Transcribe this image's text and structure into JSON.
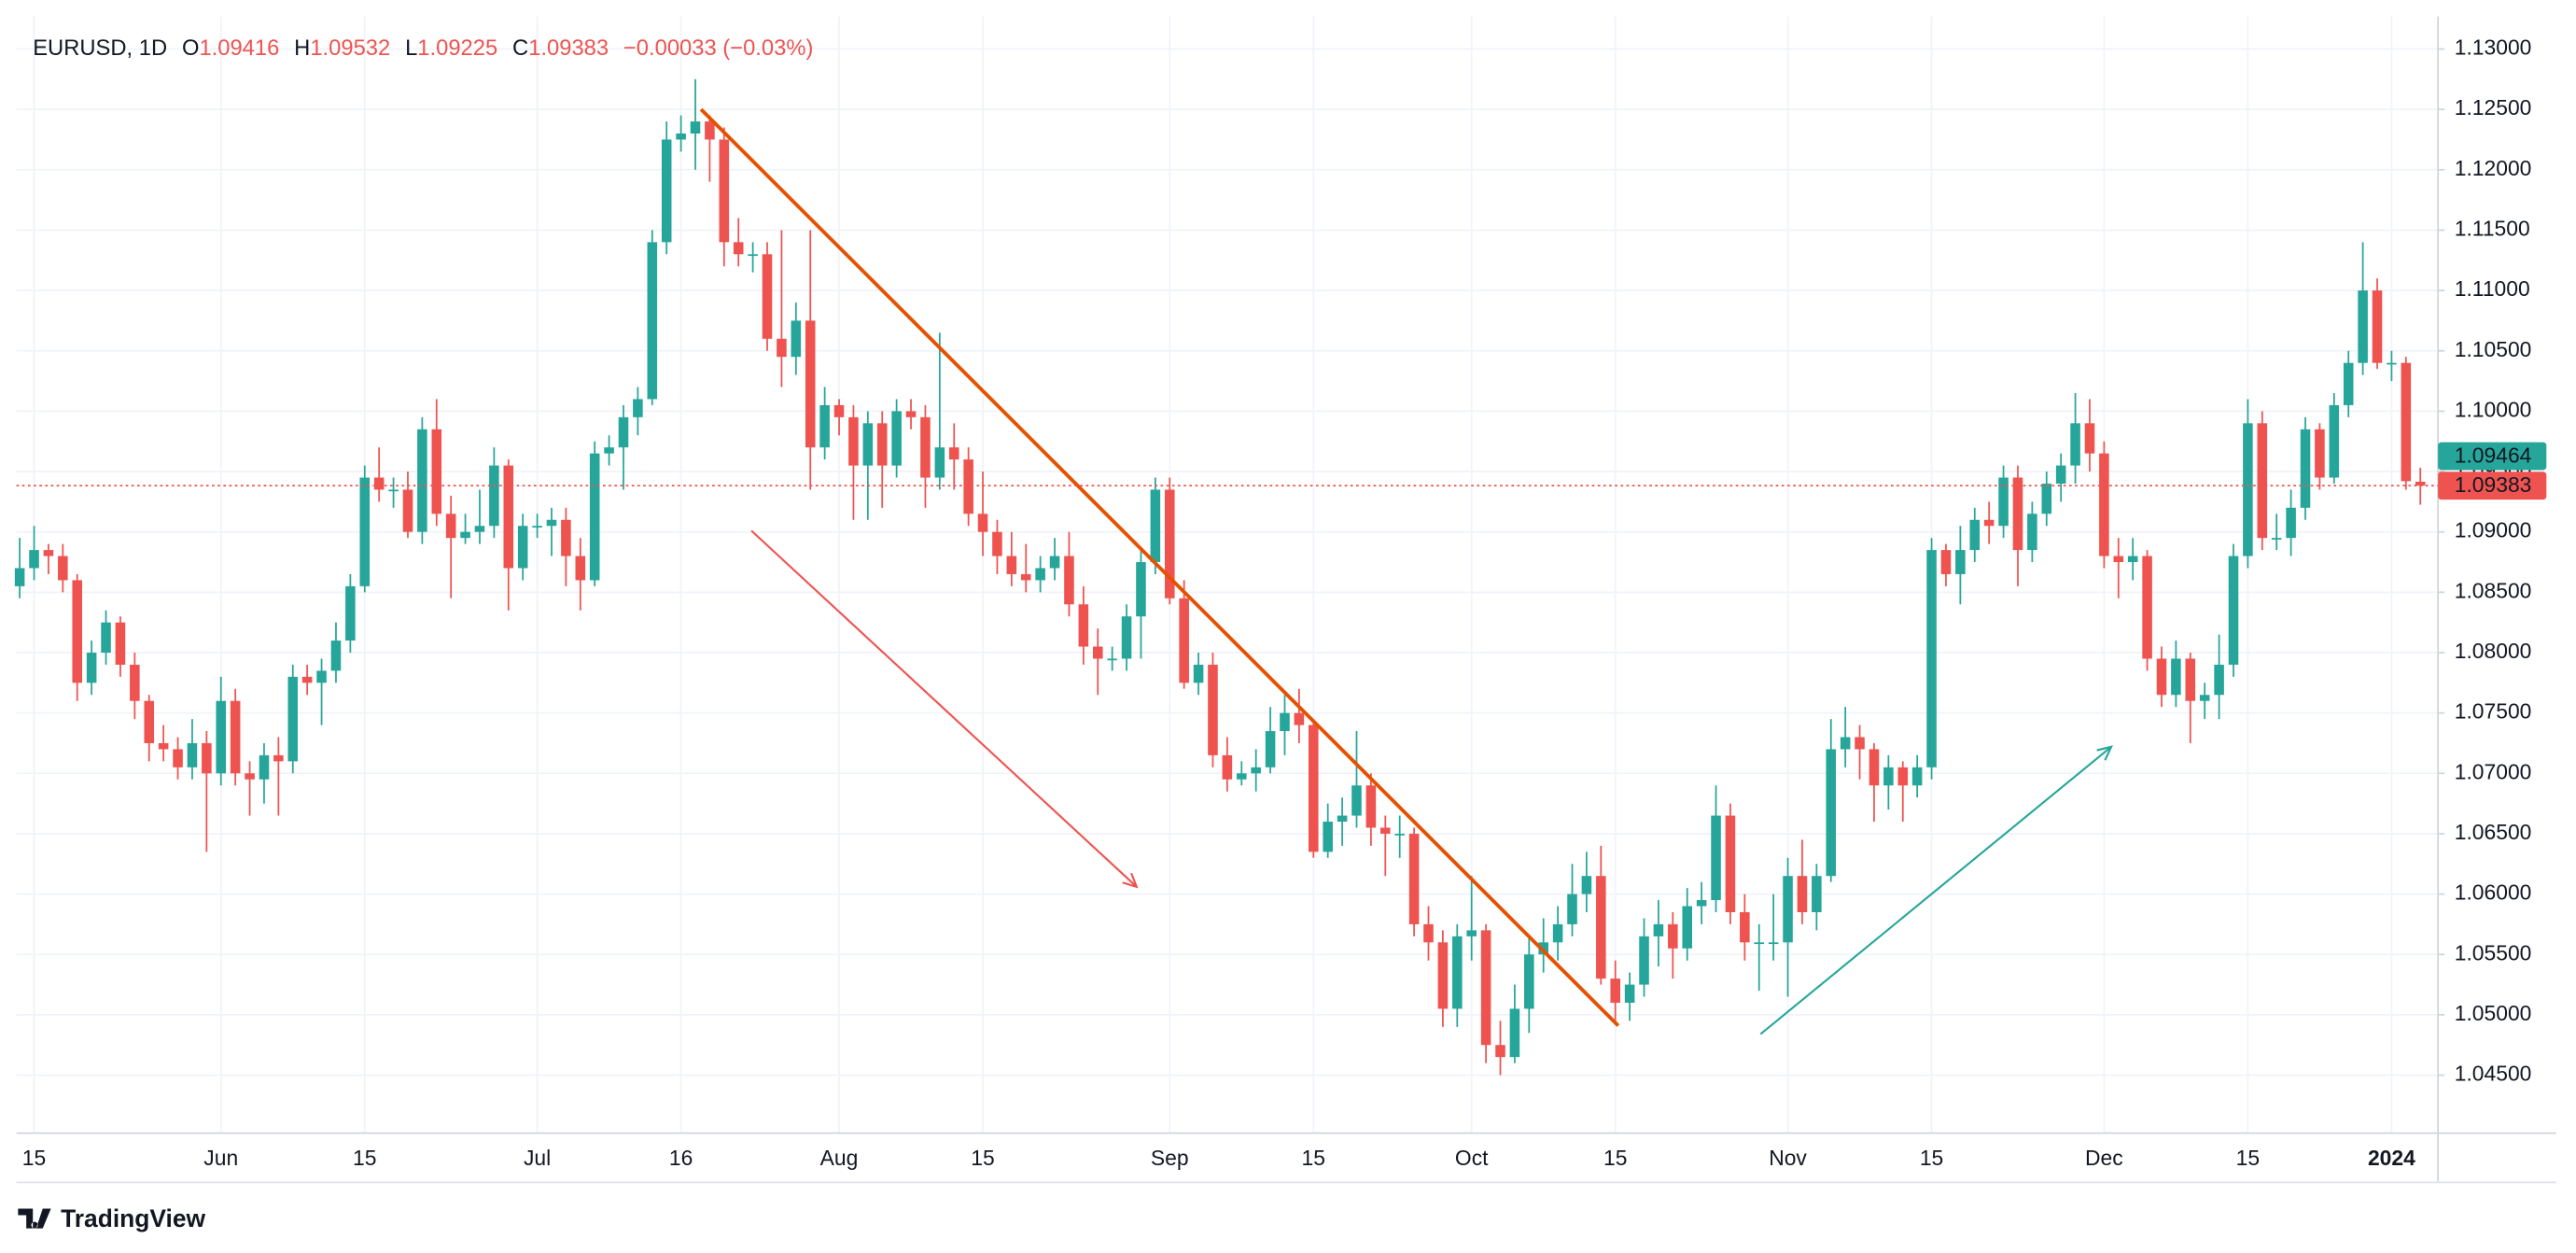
{
  "header": {
    "symbol": "EURUSD, 1D",
    "o_label": "O",
    "o": "1.09416",
    "h_label": "H",
    "h": "1.09532",
    "l_label": "L",
    "l": "1.09225",
    "c_label": "C",
    "c": "1.09383",
    "change": "−0.00033 (−0.03%)"
  },
  "footer": {
    "brand": "TradingView"
  },
  "chart_data": {
    "type": "candlestick",
    "up_color": "#26a69a",
    "down_color": "#ef5350",
    "grid": true,
    "ylim": [
      1.0402,
      1.1327
    ],
    "yticks": [
      {
        "value": 1.045,
        "label": "1.04500"
      },
      {
        "value": 1.05,
        "label": "1.05000"
      },
      {
        "value": 1.055,
        "label": "1.05500"
      },
      {
        "value": 1.06,
        "label": "1.06000"
      },
      {
        "value": 1.065,
        "label": "1.06500"
      },
      {
        "value": 1.07,
        "label": "1.07000"
      },
      {
        "value": 1.075,
        "label": "1.07500"
      },
      {
        "value": 1.08,
        "label": "1.08000"
      },
      {
        "value": 1.085,
        "label": "1.08500"
      },
      {
        "value": 1.09,
        "label": "1.09000"
      },
      {
        "value": 1.095,
        "label": "1.09500"
      },
      {
        "value": 1.1,
        "label": "1.10000"
      },
      {
        "value": 1.105,
        "label": "1.10500"
      },
      {
        "value": 1.11,
        "label": "1.11000"
      },
      {
        "value": 1.115,
        "label": "1.11500"
      },
      {
        "value": 1.12,
        "label": "1.12000"
      },
      {
        "value": 1.125,
        "label": "1.12500"
      },
      {
        "value": 1.13,
        "label": "1.13000"
      }
    ],
    "categories": [
      null,
      "15",
      null,
      null,
      null,
      null,
      null,
      null,
      null,
      null,
      null,
      null,
      null,
      null,
      "Jun",
      null,
      null,
      null,
      null,
      null,
      null,
      null,
      null,
      null,
      "15",
      null,
      null,
      null,
      null,
      null,
      null,
      null,
      null,
      null,
      null,
      null,
      "Jul",
      null,
      null,
      null,
      null,
      null,
      null,
      null,
      null,
      null,
      "16",
      null,
      null,
      null,
      null,
      null,
      null,
      null,
      null,
      null,
      null,
      "Aug",
      null,
      null,
      null,
      null,
      null,
      null,
      null,
      null,
      null,
      "15",
      null,
      null,
      null,
      null,
      null,
      null,
      null,
      null,
      null,
      null,
      null,
      null,
      "Sep",
      null,
      null,
      null,
      null,
      null,
      null,
      null,
      null,
      null,
      "15",
      null,
      null,
      null,
      null,
      null,
      null,
      null,
      null,
      null,
      null,
      "Oct",
      null,
      null,
      null,
      null,
      null,
      null,
      null,
      null,
      null,
      "15",
      null,
      null,
      null,
      null,
      null,
      null,
      null,
      null,
      null,
      null,
      null,
      "Nov",
      null,
      null,
      null,
      null,
      null,
      null,
      null,
      null,
      null,
      "15",
      null,
      null,
      null,
      null,
      null,
      null,
      null,
      null,
      null,
      null,
      null,
      "Dec",
      null,
      null,
      null,
      null,
      null,
      null,
      null,
      null,
      null,
      "15",
      null,
      null,
      null,
      null,
      null,
      null,
      null,
      null,
      null,
      "2024",
      null,
      null
    ],
    "ohlc": [
      [
        1.0855,
        1.0895,
        1.0845,
        1.087
      ],
      [
        1.087,
        1.0905,
        1.086,
        1.0885
      ],
      [
        1.0885,
        1.089,
        1.0865,
        1.088
      ],
      [
        1.088,
        1.089,
        1.085,
        1.086
      ],
      [
        1.086,
        1.0865,
        1.076,
        1.0775
      ],
      [
        1.0775,
        1.081,
        1.0765,
        1.08
      ],
      [
        1.08,
        1.0835,
        1.079,
        1.0825
      ],
      [
        1.0825,
        1.083,
        1.078,
        1.079
      ],
      [
        1.079,
        1.08,
        1.0745,
        1.076
      ],
      [
        1.076,
        1.0765,
        1.071,
        1.0725
      ],
      [
        1.0725,
        1.074,
        1.071,
        1.072
      ],
      [
        1.072,
        1.073,
        1.0695,
        1.0705
      ],
      [
        1.0705,
        1.0745,
        1.0695,
        1.0725
      ],
      [
        1.0725,
        1.0735,
        1.0635,
        1.07
      ],
      [
        1.07,
        1.078,
        1.069,
        1.076
      ],
      [
        1.076,
        1.077,
        1.069,
        1.07
      ],
      [
        1.07,
        1.071,
        1.0665,
        1.0695
      ],
      [
        1.0695,
        1.0725,
        1.0675,
        1.0715
      ],
      [
        1.0715,
        1.073,
        1.0665,
        1.071
      ],
      [
        1.071,
        1.079,
        1.07,
        1.078
      ],
      [
        1.078,
        1.079,
        1.0765,
        1.0775
      ],
      [
        1.0775,
        1.0795,
        1.074,
        1.0785
      ],
      [
        1.0785,
        1.0825,
        1.0775,
        1.081
      ],
      [
        1.081,
        1.0865,
        1.08,
        1.0855
      ],
      [
        1.0855,
        1.0955,
        1.085,
        1.0945
      ],
      [
        1.0945,
        1.097,
        1.0925,
        1.0935
      ],
      [
        1.0935,
        1.0945,
        1.092,
        1.0935
      ],
      [
        1.0935,
        1.095,
        1.0895,
        1.09
      ],
      [
        1.09,
        1.0995,
        1.089,
        1.0985
      ],
      [
        1.0985,
        1.101,
        1.0905,
        1.0915
      ],
      [
        1.0915,
        1.093,
        1.0845,
        1.0895
      ],
      [
        1.0895,
        1.0915,
        1.089,
        1.09
      ],
      [
        1.09,
        1.0935,
        1.089,
        1.0905
      ],
      [
        1.0905,
        1.097,
        1.0895,
        1.0955
      ],
      [
        1.0955,
        1.096,
        1.0835,
        1.087
      ],
      [
        1.087,
        1.0915,
        1.086,
        1.0905
      ],
      [
        1.0905,
        1.0915,
        1.0895,
        1.0905
      ],
      [
        1.0905,
        1.092,
        1.088,
        1.091
      ],
      [
        1.091,
        1.092,
        1.0855,
        1.088
      ],
      [
        1.088,
        1.0895,
        1.0835,
        1.086
      ],
      [
        1.086,
        1.0975,
        1.0855,
        1.0965
      ],
      [
        1.0965,
        1.098,
        1.0955,
        1.097
      ],
      [
        1.097,
        1.1005,
        1.0935,
        1.0995
      ],
      [
        1.0995,
        1.102,
        1.098,
        1.101
      ],
      [
        1.101,
        1.115,
        1.1005,
        1.114
      ],
      [
        1.114,
        1.124,
        1.113,
        1.1225
      ],
      [
        1.1225,
        1.1245,
        1.1215,
        1.123
      ],
      [
        1.123,
        1.1275,
        1.12,
        1.124
      ],
      [
        1.124,
        1.1245,
        1.119,
        1.1225
      ],
      [
        1.1225,
        1.1235,
        1.112,
        1.114
      ],
      [
        1.114,
        1.116,
        1.112,
        1.113
      ],
      [
        1.113,
        1.114,
        1.1115,
        1.113
      ],
      [
        1.113,
        1.114,
        1.105,
        1.106
      ],
      [
        1.106,
        1.115,
        1.102,
        1.1045
      ],
      [
        1.1045,
        1.109,
        1.103,
        1.1075
      ],
      [
        1.1075,
        1.115,
        1.0935,
        1.097
      ],
      [
        1.097,
        1.102,
        1.096,
        1.1005
      ],
      [
        1.1005,
        1.101,
        1.098,
        1.0995
      ],
      [
        1.0995,
        1.1005,
        1.091,
        1.0955
      ],
      [
        1.0955,
        1.1,
        1.091,
        1.099
      ],
      [
        1.099,
        1.1,
        1.092,
        1.0955
      ],
      [
        1.0955,
        1.101,
        1.0945,
        1.1
      ],
      [
        1.1,
        1.101,
        1.0985,
        1.0995
      ],
      [
        1.0995,
        1.1005,
        1.092,
        1.0945
      ],
      [
        1.0945,
        1.1065,
        1.0935,
        1.097
      ],
      [
        1.097,
        1.099,
        1.0935,
        1.096
      ],
      [
        1.096,
        1.097,
        1.0905,
        1.0915
      ],
      [
        1.0915,
        1.095,
        1.088,
        1.09
      ],
      [
        1.09,
        1.091,
        1.0865,
        1.088
      ],
      [
        1.088,
        1.09,
        1.0855,
        1.0865
      ],
      [
        1.0865,
        1.089,
        1.085,
        1.086
      ],
      [
        1.086,
        1.088,
        1.085,
        1.087
      ],
      [
        1.087,
        1.0895,
        1.086,
        1.088
      ],
      [
        1.088,
        1.09,
        1.083,
        1.084
      ],
      [
        1.084,
        1.0855,
        1.079,
        1.0805
      ],
      [
        1.0805,
        1.082,
        1.0765,
        1.0795
      ],
      [
        1.0795,
        1.0805,
        1.0785,
        1.0795
      ],
      [
        1.0795,
        1.084,
        1.0785,
        1.083
      ],
      [
        1.083,
        1.0885,
        1.0795,
        1.0875
      ],
      [
        1.0875,
        1.0945,
        1.0865,
        1.0935
      ],
      [
        1.0935,
        1.0945,
        1.084,
        1.0845
      ],
      [
        1.0845,
        1.086,
        1.077,
        1.0775
      ],
      [
        1.0775,
        1.08,
        1.0765,
        1.079
      ],
      [
        1.079,
        1.08,
        1.0705,
        1.0715
      ],
      [
        1.0715,
        1.073,
        1.0685,
        1.0695
      ],
      [
        1.0695,
        1.071,
        1.069,
        1.07
      ],
      [
        1.07,
        1.072,
        1.0685,
        1.0705
      ],
      [
        1.0705,
        1.0755,
        1.07,
        1.0735
      ],
      [
        1.0735,
        1.0765,
        1.0715,
        1.075
      ],
      [
        1.075,
        1.077,
        1.0725,
        1.074
      ],
      [
        1.074,
        1.0745,
        1.063,
        1.0635
      ],
      [
        1.0635,
        1.0675,
        1.063,
        1.066
      ],
      [
        1.066,
        1.068,
        1.064,
        1.0665
      ],
      [
        1.0665,
        1.0735,
        1.0655,
        1.069
      ],
      [
        1.069,
        1.07,
        1.064,
        1.0655
      ],
      [
        1.0655,
        1.0665,
        1.0615,
        1.065
      ],
      [
        1.065,
        1.0665,
        1.063,
        1.065
      ],
      [
        1.065,
        1.0655,
        1.0565,
        1.0575
      ],
      [
        1.0575,
        1.059,
        1.0545,
        1.056
      ],
      [
        1.056,
        1.057,
        1.049,
        1.0505
      ],
      [
        1.0505,
        1.0575,
        1.049,
        1.0565
      ],
      [
        1.0565,
        1.0615,
        1.0545,
        1.057
      ],
      [
        1.057,
        1.0575,
        1.046,
        1.0475
      ],
      [
        1.0475,
        1.0495,
        1.045,
        1.0465
      ],
      [
        1.0465,
        1.0525,
        1.046,
        1.0505
      ],
      [
        1.0505,
        1.0565,
        1.0485,
        1.055
      ],
      [
        1.055,
        1.058,
        1.0535,
        1.056
      ],
      [
        1.056,
        1.059,
        1.0545,
        1.0575
      ],
      [
        1.0575,
        1.0625,
        1.0565,
        1.06
      ],
      [
        1.06,
        1.0635,
        1.0585,
        1.0615
      ],
      [
        1.0615,
        1.064,
        1.0525,
        1.053
      ],
      [
        1.053,
        1.0545,
        1.0495,
        1.051
      ],
      [
        1.051,
        1.0535,
        1.0495,
        1.0525
      ],
      [
        1.0525,
        1.058,
        1.0515,
        1.0565
      ],
      [
        1.0565,
        1.0595,
        1.054,
        1.0575
      ],
      [
        1.0575,
        1.0585,
        1.053,
        1.0555
      ],
      [
        1.0555,
        1.0605,
        1.0545,
        1.059
      ],
      [
        1.059,
        1.061,
        1.0575,
        1.0595
      ],
      [
        1.0595,
        1.069,
        1.0585,
        1.0665
      ],
      [
        1.0665,
        1.0675,
        1.0575,
        1.0585
      ],
      [
        1.0585,
        1.06,
        1.0545,
        1.056
      ],
      [
        1.056,
        1.0575,
        1.052,
        1.056
      ],
      [
        1.056,
        1.06,
        1.0545,
        1.056
      ],
      [
        1.056,
        1.063,
        1.0515,
        1.0615
      ],
      [
        1.0615,
        1.0645,
        1.0575,
        1.0585
      ],
      [
        1.0585,
        1.0625,
        1.057,
        1.0615
      ],
      [
        1.0615,
        1.0745,
        1.061,
        1.072
      ],
      [
        1.072,
        1.0755,
        1.0705,
        1.073
      ],
      [
        1.073,
        1.074,
        1.0695,
        1.072
      ],
      [
        1.072,
        1.0725,
        1.066,
        1.069
      ],
      [
        1.069,
        1.0715,
        1.067,
        1.0705
      ],
      [
        1.0705,
        1.071,
        1.066,
        1.069
      ],
      [
        1.069,
        1.0715,
        1.068,
        1.0705
      ],
      [
        1.0705,
        1.0895,
        1.0695,
        1.0885
      ],
      [
        1.0885,
        1.089,
        1.0855,
        1.0865
      ],
      [
        1.0865,
        1.0905,
        1.084,
        1.0885
      ],
      [
        1.0885,
        1.092,
        1.0875,
        1.091
      ],
      [
        1.091,
        1.0925,
        1.089,
        1.0905
      ],
      [
        1.0905,
        1.0955,
        1.0895,
        1.0945
      ],
      [
        1.0945,
        1.0955,
        1.0855,
        1.0885
      ],
      [
        1.0885,
        1.0925,
        1.0875,
        1.0915
      ],
      [
        1.0915,
        1.095,
        1.0905,
        1.094
      ],
      [
        1.094,
        1.0965,
        1.0925,
        1.0955
      ],
      [
        1.0955,
        1.1015,
        1.094,
        1.099
      ],
      [
        1.099,
        1.101,
        1.095,
        1.0965
      ],
      [
        1.0965,
        1.0975,
        1.087,
        1.088
      ],
      [
        1.088,
        1.0895,
        1.0845,
        1.0875
      ],
      [
        1.0875,
        1.0895,
        1.086,
        1.088
      ],
      [
        1.088,
        1.0885,
        1.0785,
        1.0795
      ],
      [
        1.0795,
        1.0805,
        1.0755,
        1.0765
      ],
      [
        1.0765,
        1.081,
        1.0755,
        1.0795
      ],
      [
        1.0795,
        1.08,
        1.0725,
        1.076
      ],
      [
        1.076,
        1.0775,
        1.0745,
        1.0765
      ],
      [
        1.0765,
        1.0815,
        1.0745,
        1.079
      ],
      [
        1.079,
        1.089,
        1.078,
        1.088
      ],
      [
        1.088,
        1.101,
        1.087,
        1.099
      ],
      [
        1.099,
        1.1,
        1.0885,
        1.0895
      ],
      [
        1.0895,
        1.0915,
        1.0885,
        1.0895
      ],
      [
        1.0895,
        1.0935,
        1.088,
        1.092
      ],
      [
        1.092,
        1.0995,
        1.091,
        1.0985
      ],
      [
        1.0985,
        1.099,
        1.0935,
        1.0945
      ],
      [
        1.0945,
        1.1015,
        1.094,
        1.1005
      ],
      [
        1.1005,
        1.105,
        1.0995,
        1.104
      ],
      [
        1.104,
        1.114,
        1.103,
        1.11
      ],
      [
        1.11,
        1.111,
        1.1035,
        1.104
      ],
      [
        1.104,
        1.105,
        1.1025,
        1.104
      ],
      [
        1.104,
        1.1045,
        1.0935,
        1.0942
      ],
      [
        1.09416,
        1.09532,
        1.09225,
        1.09383
      ]
    ],
    "price_labels": [
      {
        "value": 1.09464,
        "label": "1.09464",
        "color": "#26a69a"
      },
      {
        "value": 1.09383,
        "label": "1.09383",
        "color": "#ef5350",
        "line": "dotted"
      }
    ],
    "drawings": [
      {
        "type": "trend_line",
        "color": "#e65100",
        "points": [
          [
            47.4,
            1.125
          ],
          [
            111.2,
            1.0491
          ]
        ]
      },
      {
        "type": "arrow",
        "color": "#ef5350",
        "points": [
          [
            50.9,
            1.0901
          ],
          [
            77.7,
            1.0606
          ]
        ]
      },
      {
        "type": "arrow",
        "color": "#26a69a",
        "points": [
          [
            121.1,
            1.0484
          ],
          [
            145.5,
            1.0722
          ]
        ]
      }
    ]
  }
}
